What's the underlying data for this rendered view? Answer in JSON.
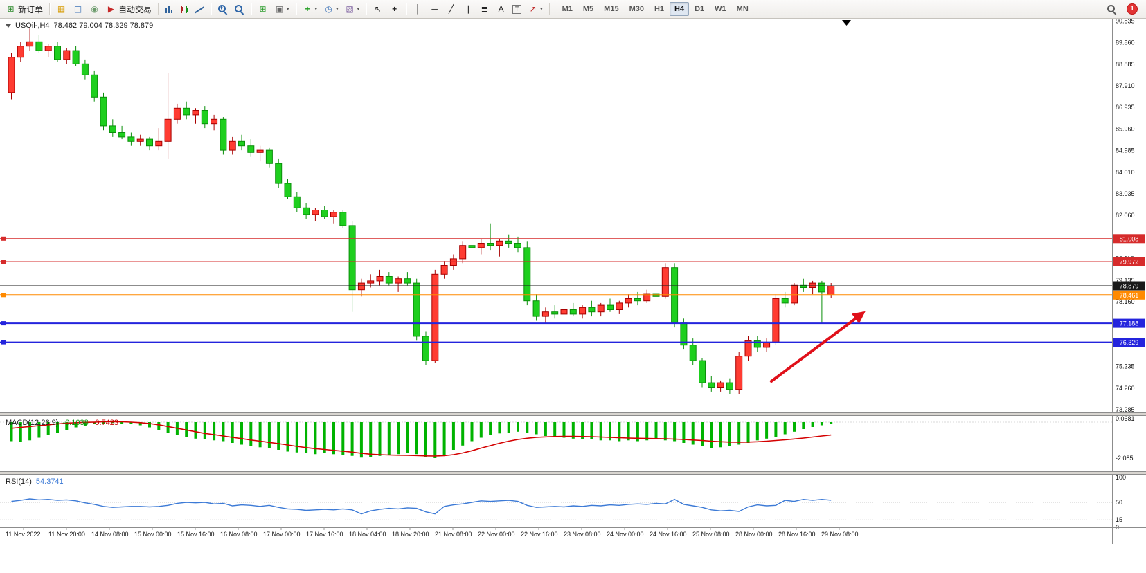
{
  "app": {
    "toolbar": {
      "caret_glyph": "▾",
      "notification_count": "1",
      "items": [
        {
          "kind": "labeled",
          "name": "new-order-button",
          "icon": "new-order-icon",
          "glyph": "⊞",
          "icon_color": "#2e8b2e",
          "label": "新订单"
        },
        {
          "kind": "sep"
        },
        {
          "kind": "icon",
          "name": "new-chart-button",
          "icon": "new-chart-icon",
          "glyph": "▦",
          "icon_color": "#d79b00"
        },
        {
          "kind": "icon",
          "name": "profiles-button",
          "icon": "profiles-icon",
          "glyph": "◫",
          "icon_color": "#3f74b8"
        },
        {
          "kind": "icon",
          "name": "market-watch-button",
          "icon": "market-watch-icon",
          "glyph": "◉",
          "icon_color": "#6a9a6a"
        },
        {
          "kind": "labeled",
          "name": "autotrading-button",
          "icon": "autotrading-icon",
          "glyph": "▶",
          "icon_color": "#c62828",
          "label": "自动交易"
        },
        {
          "kind": "sep"
        },
        {
          "kind": "icon",
          "name": "bar-chart-button",
          "icon": "bar-chart-icon",
          "css": "ic-bars"
        },
        {
          "kind": "icon",
          "name": "candlestick-chart-button",
          "icon": "candlestick-chart-icon",
          "css": "ic-candles"
        },
        {
          "kind": "icon",
          "name": "line-chart-button",
          "icon": "line-chart-icon",
          "css": "ic-line"
        },
        {
          "kind": "sep"
        },
        {
          "kind": "icon",
          "name": "zoom-in-button",
          "icon": "zoom-in-icon",
          "css": "mag",
          "sign": "+"
        },
        {
          "kind": "icon",
          "name": "zoom-out-button",
          "icon": "zoom-out-icon",
          "css": "mag",
          "sign": "-"
        },
        {
          "kind": "sep"
        },
        {
          "kind": "icon",
          "name": "tile-windows-button",
          "icon": "tile-windows-icon",
          "glyph": "⊞",
          "icon_color": "#2f9e2f"
        },
        {
          "kind": "icon",
          "name": "cascade-windows-button",
          "icon": "cascade-windows-icon",
          "glyph": "▣",
          "icon_color": "#666666",
          "caret": true
        },
        {
          "kind": "sep"
        },
        {
          "kind": "icon",
          "name": "indicators-button",
          "icon": "indicators-icon",
          "glyph": "+",
          "icon_color": "#1f9d1f",
          "bold": true,
          "caret": true
        },
        {
          "kind": "icon",
          "name": "periods-button",
          "icon": "clock-icon",
          "glyph": "◷",
          "icon_color": "#3f74b8",
          "caret": true
        },
        {
          "kind": "icon",
          "name": "templates-button",
          "icon": "template-icon",
          "glyph": "▧",
          "icon_color": "#8064a2",
          "caret": true
        },
        {
          "kind": "sep"
        },
        {
          "kind": "icon",
          "name": "cursor-button",
          "icon": "cursor-icon",
          "glyph": "↖",
          "icon_color": "#222222"
        },
        {
          "kind": "icon",
          "name": "crosshair-button",
          "icon": "crosshair-icon",
          "glyph": "+",
          "icon_color": "#222222",
          "bold": true
        },
        {
          "kind": "sep"
        },
        {
          "kind": "icon",
          "name": "vertical-line-button",
          "icon": "vertical-line-icon",
          "glyph": "│",
          "icon_color": "#222222"
        },
        {
          "kind": "icon",
          "name": "horizontal-line-button",
          "icon": "horizontal-line-icon",
          "glyph": "─",
          "icon_color": "#222222"
        },
        {
          "kind": "icon",
          "name": "trendline-button",
          "icon": "trendline-icon",
          "glyph": "╱",
          "icon_color": "#222222"
        },
        {
          "kind": "icon",
          "name": "channel-button",
          "icon": "channel-icon",
          "glyph": "∥",
          "icon_color": "#222222"
        },
        {
          "kind": "icon",
          "name": "fibonacci-button",
          "icon": "fibonacci-icon",
          "glyph": "≣",
          "icon_color": "#222222"
        },
        {
          "kind": "icon",
          "name": "text-button",
          "icon": "text-icon",
          "glyph": "A",
          "icon_color": "#222222"
        },
        {
          "kind": "icon",
          "name": "label-button",
          "icon": "text-label-icon",
          "glyph": "T",
          "icon_color": "#222222",
          "boxed": true
        },
        {
          "kind": "icon",
          "name": "shapes-button",
          "icon": "arrow-shape-icon",
          "glyph": "↗",
          "icon_color": "#c03030",
          "caret": true
        },
        {
          "kind": "sep"
        }
      ],
      "timeframes": [
        {
          "label": "M1"
        },
        {
          "label": "M5"
        },
        {
          "label": "M15"
        },
        {
          "label": "M30"
        },
        {
          "label": "H1"
        },
        {
          "label": "H4",
          "active": true
        },
        {
          "label": "D1"
        },
        {
          "label": "W1"
        },
        {
          "label": "MN"
        }
      ]
    }
  },
  "chart": {
    "header": {
      "symbol_period": "USOil-,H4",
      "ohlc": "78.462 79.004 78.329 78.879"
    }
  },
  "chart_data": {
    "type": "candlestick",
    "symbol": "USOil-",
    "period": "H4",
    "price_range": [
      73.3,
      90.94
    ],
    "x_labels": [
      "11 Nov 2022",
      "11 Nov 20:00",
      "14 Nov 08:00",
      "15 Nov 00:00",
      "15 Nov 16:00",
      "16 Nov 08:00",
      "17 Nov 00:00",
      "17 Nov 16:00",
      "18 Nov 04:00",
      "18 Nov 20:00",
      "21 Nov 08:00",
      "22 Nov 00:00",
      "22 Nov 16:00",
      "23 Nov 08:00",
      "24 Nov 00:00",
      "24 Nov 16:00",
      "25 Nov 08:00",
      "28 Nov 00:00",
      "28 Nov 16:00",
      "29 Nov 08:00"
    ],
    "price_axis_ticks": [
      "90.835",
      "89.860",
      "88.885",
      "87.910",
      "86.935",
      "85.960",
      "84.985",
      "84.010",
      "83.035",
      "82.060",
      "80.110",
      "79.135",
      "78.160",
      "76.210",
      "75.235",
      "74.260",
      "73.285"
    ],
    "candles_ohlc": [
      [
        87.6,
        89.4,
        87.3,
        89.2
      ],
      [
        89.2,
        89.9,
        89.0,
        89.7
      ],
      [
        89.7,
        90.5,
        89.5,
        89.9
      ],
      [
        89.9,
        90.2,
        89.4,
        89.5
      ],
      [
        89.5,
        89.8,
        89.2,
        89.7
      ],
      [
        89.7,
        89.9,
        89.0,
        89.1
      ],
      [
        89.1,
        89.6,
        88.9,
        89.5
      ],
      [
        89.5,
        89.7,
        88.8,
        88.9
      ],
      [
        88.9,
        89.1,
        88.2,
        88.4
      ],
      [
        88.4,
        88.6,
        87.2,
        87.4
      ],
      [
        87.4,
        87.6,
        85.9,
        86.1
      ],
      [
        86.1,
        86.4,
        85.6,
        85.8
      ],
      [
        85.8,
        86.1,
        85.5,
        85.6
      ],
      [
        85.6,
        85.8,
        85.2,
        85.4
      ],
      [
        85.4,
        85.7,
        85.2,
        85.5
      ],
      [
        85.5,
        85.6,
        85.0,
        85.2
      ],
      [
        85.2,
        86.0,
        85.0,
        85.4
      ],
      [
        85.4,
        88.5,
        84.6,
        86.4
      ],
      [
        86.4,
        87.1,
        86.2,
        86.9
      ],
      [
        86.9,
        87.2,
        86.4,
        86.6
      ],
      [
        86.6,
        86.9,
        86.2,
        86.8
      ],
      [
        86.8,
        87.0,
        86.0,
        86.2
      ],
      [
        86.2,
        86.6,
        85.9,
        86.4
      ],
      [
        86.4,
        86.5,
        84.8,
        85.0
      ],
      [
        85.0,
        85.6,
        84.8,
        85.4
      ],
      [
        85.4,
        85.7,
        85.0,
        85.2
      ],
      [
        85.2,
        85.5,
        84.7,
        84.9
      ],
      [
        84.9,
        85.2,
        84.5,
        85.0
      ],
      [
        85.0,
        85.1,
        84.2,
        84.4
      ],
      [
        84.4,
        84.6,
        83.3,
        83.5
      ],
      [
        83.5,
        83.7,
        82.8,
        82.9
      ],
      [
        82.9,
        83.1,
        82.2,
        82.4
      ],
      [
        82.4,
        82.6,
        81.9,
        82.1
      ],
      [
        82.1,
        82.4,
        81.8,
        82.3
      ],
      [
        82.3,
        82.5,
        81.9,
        82.0
      ],
      [
        82.0,
        82.3,
        81.7,
        82.2
      ],
      [
        82.2,
        82.3,
        81.5,
        81.6
      ],
      [
        81.6,
        81.8,
        77.7,
        78.7
      ],
      [
        78.7,
        79.2,
        78.4,
        79.0
      ],
      [
        79.0,
        79.4,
        78.8,
        79.1
      ],
      [
        79.1,
        79.6,
        78.9,
        79.3
      ],
      [
        79.3,
        79.5,
        78.9,
        79.0
      ],
      [
        79.0,
        79.3,
        78.6,
        79.2
      ],
      [
        79.2,
        79.5,
        78.9,
        79.0
      ],
      [
        79.0,
        79.2,
        76.4,
        76.6
      ],
      [
        76.6,
        76.8,
        75.3,
        75.5
      ],
      [
        75.5,
        79.6,
        75.4,
        79.4
      ],
      [
        79.4,
        80.0,
        79.2,
        79.8
      ],
      [
        79.8,
        80.3,
        79.6,
        80.1
      ],
      [
        80.1,
        80.9,
        79.9,
        80.7
      ],
      [
        80.7,
        81.4,
        80.4,
        80.6
      ],
      [
        80.6,
        81.0,
        80.3,
        80.8
      ],
      [
        80.8,
        81.7,
        80.5,
        80.7
      ],
      [
        80.7,
        81.0,
        80.2,
        80.9
      ],
      [
        80.9,
        81.2,
        80.6,
        80.8
      ],
      [
        80.8,
        81.1,
        80.4,
        80.6
      ],
      [
        80.6,
        80.9,
        78.0,
        78.2
      ],
      [
        78.2,
        78.5,
        77.3,
        77.5
      ],
      [
        77.5,
        77.9,
        77.2,
        77.7
      ],
      [
        77.7,
        78.0,
        77.4,
        77.6
      ],
      [
        77.6,
        77.9,
        77.3,
        77.8
      ],
      [
        77.8,
        78.1,
        77.5,
        77.6
      ],
      [
        77.6,
        78.0,
        77.4,
        77.9
      ],
      [
        77.9,
        78.2,
        77.5,
        77.7
      ],
      [
        77.7,
        78.1,
        77.5,
        78.0
      ],
      [
        78.0,
        78.3,
        77.7,
        77.8
      ],
      [
        77.8,
        78.2,
        77.6,
        78.1
      ],
      [
        78.1,
        78.5,
        77.9,
        78.3
      ],
      [
        78.3,
        78.6,
        78.0,
        78.2
      ],
      [
        78.2,
        78.7,
        78.1,
        78.5
      ],
      [
        78.5,
        78.8,
        78.2,
        78.4
      ],
      [
        78.4,
        79.9,
        78.3,
        79.7
      ],
      [
        79.7,
        79.9,
        77.0,
        77.2
      ],
      [
        77.2,
        77.4,
        76.0,
        76.2
      ],
      [
        76.2,
        76.5,
        75.3,
        75.5
      ],
      [
        75.5,
        75.6,
        74.3,
        74.5
      ],
      [
        74.5,
        74.8,
        74.1,
        74.3
      ],
      [
        74.3,
        74.6,
        74.1,
        74.5
      ],
      [
        74.5,
        74.7,
        74.0,
        74.2
      ],
      [
        74.2,
        75.9,
        74.0,
        75.7
      ],
      [
        75.7,
        76.6,
        75.5,
        76.4
      ],
      [
        76.4,
        76.6,
        75.9,
        76.1
      ],
      [
        76.1,
        76.5,
        75.9,
        76.3
      ],
      [
        76.3,
        78.5,
        76.2,
        78.3
      ],
      [
        78.3,
        78.6,
        77.9,
        78.1
      ],
      [
        78.1,
        79.0,
        78.0,
        78.9
      ],
      [
        78.9,
        79.2,
        78.6,
        78.8
      ],
      [
        78.8,
        79.1,
        78.5,
        79.0
      ],
      [
        79.0,
        79.1,
        77.2,
        78.6
      ],
      [
        78.462,
        79.004,
        78.329,
        78.879
      ]
    ],
    "levels": [
      {
        "price": 81.008,
        "label": "81.008",
        "color": "#d62b2b",
        "width": 1
      },
      {
        "price": 79.972,
        "label": "79.972",
        "color": "#d62b2b",
        "width": 1
      },
      {
        "price": 78.461,
        "label": "78.461",
        "color": "#ff8a00",
        "width": 2
      },
      {
        "price": 77.188,
        "label": "77.188",
        "color": "#2424dd",
        "width": 2
      },
      {
        "price": 76.329,
        "label": "76.329",
        "color": "#2424dd",
        "width": 2
      }
    ],
    "bid": {
      "price": 78.879,
      "label": "78.879",
      "color": "#1a1a1a"
    },
    "annotations": [
      {
        "type": "arrow",
        "from_bar": 82.4,
        "from_price": 74.53,
        "to_bar": 92.5,
        "to_price": 77.66,
        "color": "#e0101a"
      }
    ],
    "indicators": [
      {
        "type": "MACD",
        "label": "MACD(12,26,9)",
        "value_main": "-0.1038",
        "value_signal": "-0.7423",
        "axis_labels": [
          "0.0681",
          "-2.085"
        ],
        "histogram": [
          -1.1,
          -1.15,
          -1.05,
          -0.9,
          -0.75,
          -0.6,
          -0.45,
          -0.3,
          -0.2,
          -0.12,
          -0.08,
          -0.05,
          -0.08,
          -0.12,
          -0.18,
          -0.3,
          -0.45,
          -0.6,
          -0.75,
          -0.85,
          -0.95,
          -1.0,
          -1.05,
          -1.1,
          -1.2,
          -1.3,
          -1.4,
          -1.45,
          -1.5,
          -1.6,
          -1.7,
          -1.75,
          -1.8,
          -1.85,
          -1.8,
          -1.85,
          -1.9,
          -1.95,
          -2.05,
          -2.0,
          -1.95,
          -1.9,
          -1.85,
          -1.8,
          -1.85,
          -2.0,
          -2.08,
          -1.9,
          -1.6,
          -1.35,
          -1.1,
          -0.9,
          -0.75,
          -0.65,
          -0.6,
          -0.55,
          -0.6,
          -0.7,
          -0.8,
          -0.85,
          -0.9,
          -0.95,
          -1.0,
          -1.0,
          -1.05,
          -1.05,
          -1.1,
          -1.05,
          -1.1,
          -1.05,
          -1.0,
          -1.05,
          -1.1,
          -1.2,
          -1.3,
          -1.4,
          -1.5,
          -1.45,
          -1.4,
          -1.3,
          -1.2,
          -1.05,
          -0.95,
          -0.85,
          -0.7,
          -0.55,
          -0.4,
          -0.28,
          -0.18,
          -0.1038
        ],
        "signal": [
          -0.35,
          -0.3,
          -0.25,
          -0.2,
          -0.15,
          -0.1,
          -0.06,
          -0.03,
          -0.01,
          0.0,
          0.02,
          0.03,
          0.02,
          0.0,
          -0.03,
          -0.08,
          -0.15,
          -0.25,
          -0.35,
          -0.45,
          -0.55,
          -0.65,
          -0.72,
          -0.8,
          -0.88,
          -0.95,
          -1.03,
          -1.1,
          -1.17,
          -1.24,
          -1.32,
          -1.4,
          -1.47,
          -1.53,
          -1.58,
          -1.63,
          -1.68,
          -1.73,
          -1.8,
          -1.85,
          -1.88,
          -1.9,
          -1.91,
          -1.92,
          -1.93,
          -1.95,
          -1.96,
          -1.94,
          -1.88,
          -1.78,
          -1.65,
          -1.5,
          -1.36,
          -1.22,
          -1.1,
          -1.0,
          -0.93,
          -0.88,
          -0.85,
          -0.83,
          -0.82,
          -0.82,
          -0.83,
          -0.84,
          -0.86,
          -0.88,
          -0.9,
          -0.92,
          -0.93,
          -0.94,
          -0.95,
          -0.96,
          -0.98,
          -1.0,
          -1.03,
          -1.06,
          -1.1,
          -1.13,
          -1.15,
          -1.16,
          -1.15,
          -1.13,
          -1.1,
          -1.06,
          -1.02,
          -0.97,
          -0.92,
          -0.86,
          -0.8,
          -0.7423
        ]
      },
      {
        "type": "RSI",
        "label": "RSI(14)",
        "value": "54.3741",
        "axis_labels": [
          "100",
          "50",
          "15",
          "0"
        ],
        "values": [
          52,
          54,
          57,
          55,
          56,
          54,
          55,
          53,
          49,
          46,
          42,
          40,
          41,
          42,
          42,
          41,
          42,
          44,
          48,
          50,
          49,
          50,
          47,
          48,
          43,
          45,
          44,
          42,
          44,
          40,
          37,
          36,
          34,
          35,
          36,
          35,
          37,
          35,
          27,
          33,
          36,
          38,
          37,
          39,
          38,
          31,
          27,
          42,
          45,
          47,
          50,
          53,
          52,
          53,
          54,
          52,
          44,
          40,
          41,
          42,
          41,
          43,
          42,
          44,
          43,
          45,
          44,
          46,
          47,
          46,
          48,
          47,
          56,
          46,
          43,
          40,
          35,
          33,
          34,
          32,
          41,
          45,
          43,
          44,
          54,
          52,
          56,
          54,
          56,
          54.37
        ]
      }
    ],
    "colors": {
      "up_fill": "#ff3c32",
      "up_stroke": "#a80000",
      "down_fill": "#1ecf1e",
      "down_stroke": "#0a8f0a",
      "macd_histogram": "#00b300",
      "macd_signal": "#d40000",
      "rsi_line": "#3c7ad6"
    }
  }
}
